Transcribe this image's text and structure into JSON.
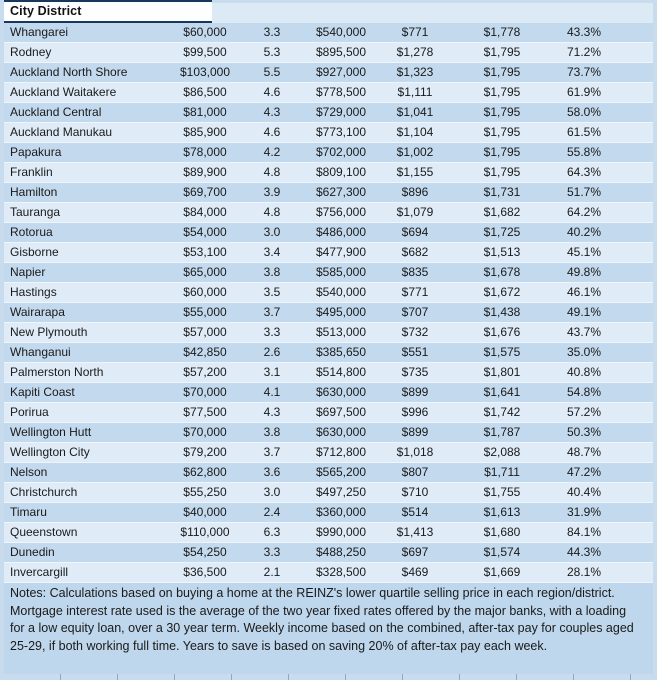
{
  "colors": {
    "page_bg": "#c8dcee",
    "band_dark": "#c3d9ee",
    "band_light": "#dfecf8",
    "header_bg": "#fdfeff",
    "header_rest_bg": "#dceaf5",
    "notes_bg": "#bfd7ec",
    "border_navy": "#17375d",
    "text": "#1a1a1a"
  },
  "chart_data": {
    "type": "table",
    "header_visible": [
      "City District"
    ],
    "rows": [
      [
        "Whangarei",
        "$60,000",
        "3.3",
        "$540,000",
        "$771",
        "$1,778",
        "43.3%"
      ],
      [
        "Rodney",
        "$99,500",
        "5.3",
        "$895,500",
        "$1,278",
        "$1,795",
        "71.2%"
      ],
      [
        "Auckland North Shore",
        "$103,000",
        "5.5",
        "$927,000",
        "$1,323",
        "$1,795",
        "73.7%"
      ],
      [
        "Auckland Waitakere",
        "$86,500",
        "4.6",
        "$778,500",
        "$1,111",
        "$1,795",
        "61.9%"
      ],
      [
        "Auckland Central",
        "$81,000",
        "4.3",
        "$729,000",
        "$1,041",
        "$1,795",
        "58.0%"
      ],
      [
        "Auckland Manukau",
        "$85,900",
        "4.6",
        "$773,100",
        "$1,104",
        "$1,795",
        "61.5%"
      ],
      [
        "Papakura",
        "$78,000",
        "4.2",
        "$702,000",
        "$1,002",
        "$1,795",
        "55.8%"
      ],
      [
        "Franklin",
        "$89,900",
        "4.8",
        "$809,100",
        "$1,155",
        "$1,795",
        "64.3%"
      ],
      [
        "Hamilton",
        "$69,700",
        "3.9",
        "$627,300",
        "$896",
        "$1,731",
        "51.7%"
      ],
      [
        "Tauranga",
        "$84,000",
        "4.8",
        "$756,000",
        "$1,079",
        "$1,682",
        "64.2%"
      ],
      [
        "Rotorua",
        "$54,000",
        "3.0",
        "$486,000",
        "$694",
        "$1,725",
        "40.2%"
      ],
      [
        "Gisborne",
        "$53,100",
        "3.4",
        "$477,900",
        "$682",
        "$1,513",
        "45.1%"
      ],
      [
        "Napier",
        "$65,000",
        "3.8",
        "$585,000",
        "$835",
        "$1,678",
        "49.8%"
      ],
      [
        "Hastings",
        "$60,000",
        "3.5",
        "$540,000",
        "$771",
        "$1,672",
        "46.1%"
      ],
      [
        "Wairarapa",
        "$55,000",
        "3.7",
        "$495,000",
        "$707",
        "$1,438",
        "49.1%"
      ],
      [
        "New Plymouth",
        "$57,000",
        "3.3",
        "$513,000",
        "$732",
        "$1,676",
        "43.7%"
      ],
      [
        "Whanganui",
        "$42,850",
        "2.6",
        "$385,650",
        "$551",
        "$1,575",
        "35.0%"
      ],
      [
        "Palmerston North",
        "$57,200",
        "3.1",
        "$514,800",
        "$735",
        "$1,801",
        "40.8%"
      ],
      [
        "Kapiti Coast",
        "$70,000",
        "4.1",
        "$630,000",
        "$899",
        "$1,641",
        "54.8%"
      ],
      [
        "Porirua",
        "$77,500",
        "4.3",
        "$697,500",
        "$996",
        "$1,742",
        "57.2%"
      ],
      [
        "Wellington Hutt",
        "$70,000",
        "3.8",
        "$630,000",
        "$899",
        "$1,787",
        "50.3%"
      ],
      [
        "Wellington City",
        "$79,200",
        "3.7",
        "$712,800",
        "$1,018",
        "$2,088",
        "48.7%"
      ],
      [
        "Nelson",
        "$62,800",
        "3.6",
        "$565,200",
        "$807",
        "$1,711",
        "47.2%"
      ],
      [
        "Christchurch",
        "$55,250",
        "3.0",
        "$497,250",
        "$710",
        "$1,755",
        "40.4%"
      ],
      [
        "Timaru",
        "$40,000",
        "2.4",
        "$360,000",
        "$514",
        "$1,613",
        "31.9%"
      ],
      [
        "Queenstown",
        "$110,000",
        "6.3",
        "$990,000",
        "$1,413",
        "$1,680",
        "84.1%"
      ],
      [
        "Dunedin",
        "$54,250",
        "3.3",
        "$488,250",
        "$697",
        "$1,574",
        "44.3%"
      ],
      [
        "Invercargill",
        "$36,500",
        "2.1",
        "$328,500",
        "$469",
        "$1,669",
        "28.1%"
      ]
    ],
    "notes": "Notes: Calculations based on buying a home at the REINZ's lower quartile selling price in each region/district. Mortgage interest rate used is the average of the two year fixed rates offered by the major banks, with a loading for a low equity loan, over a 30 year term. Weekly income based on the combined, after-tax pay for couples aged 25-29, if both working full time. Years to save is based on saving 20% of after-tax pay each week."
  }
}
